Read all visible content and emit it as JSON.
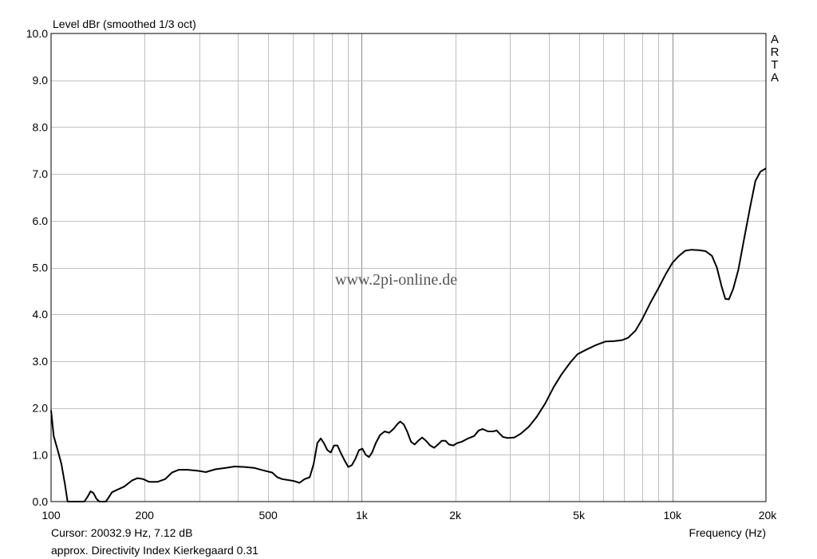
{
  "chart_data": {
    "type": "line",
    "ylabel": "Level dBr (smoothed 1/3 oct)",
    "xlabel": "Frequency (Hz)",
    "x_scale": "log",
    "xlim": [
      100,
      20000
    ],
    "ylim": [
      0,
      10
    ],
    "grid": true,
    "x_ticks": [
      {
        "value": 100,
        "label": "100"
      },
      {
        "value": 200,
        "label": "200"
      },
      {
        "value": 500,
        "label": "500"
      },
      {
        "value": 1000,
        "label": "1k"
      },
      {
        "value": 2000,
        "label": "2k"
      },
      {
        "value": 5000,
        "label": "5k"
      },
      {
        "value": 10000,
        "label": "10k"
      },
      {
        "value": 20000,
        "label": "20k"
      }
    ],
    "y_ticks": [
      {
        "value": 0,
        "label": "0.0"
      },
      {
        "value": 1,
        "label": "1.0"
      },
      {
        "value": 2,
        "label": "2.0"
      },
      {
        "value": 3,
        "label": "3.0"
      },
      {
        "value": 4,
        "label": "4.0"
      },
      {
        "value": 5,
        "label": "5.0"
      },
      {
        "value": 6,
        "label": "6.0"
      },
      {
        "value": 7,
        "label": "7.0"
      },
      {
        "value": 8,
        "label": "8.0"
      },
      {
        "value": 9,
        "label": "9.0"
      },
      {
        "value": 10,
        "label": "10.0"
      }
    ],
    "series": [
      {
        "color": "#000000",
        "points": [
          [
            100,
            1.95
          ],
          [
            102,
            1.4
          ],
          [
            105,
            1.1
          ],
          [
            108,
            0.8
          ],
          [
            111,
            0.35
          ],
          [
            113,
            0.0
          ],
          [
            128,
            0.0
          ],
          [
            131,
            0.1
          ],
          [
            134,
            0.22
          ],
          [
            137,
            0.18
          ],
          [
            140,
            0.06
          ],
          [
            143,
            0.0
          ],
          [
            150,
            0.0
          ],
          [
            153,
            0.08
          ],
          [
            157,
            0.2
          ],
          [
            163,
            0.25
          ],
          [
            172,
            0.32
          ],
          [
            182,
            0.45
          ],
          [
            190,
            0.5
          ],
          [
            198,
            0.48
          ],
          [
            207,
            0.42
          ],
          [
            220,
            0.42
          ],
          [
            233,
            0.48
          ],
          [
            245,
            0.62
          ],
          [
            258,
            0.68
          ],
          [
            275,
            0.68
          ],
          [
            295,
            0.66
          ],
          [
            315,
            0.63
          ],
          [
            338,
            0.69
          ],
          [
            365,
            0.72
          ],
          [
            390,
            0.75
          ],
          [
            420,
            0.74
          ],
          [
            450,
            0.72
          ],
          [
            480,
            0.67
          ],
          [
            515,
            0.62
          ],
          [
            535,
            0.52
          ],
          [
            555,
            0.48
          ],
          [
            580,
            0.46
          ],
          [
            605,
            0.44
          ],
          [
            630,
            0.4
          ],
          [
            655,
            0.48
          ],
          [
            680,
            0.52
          ],
          [
            700,
            0.8
          ],
          [
            720,
            1.25
          ],
          [
            738,
            1.35
          ],
          [
            755,
            1.25
          ],
          [
            775,
            1.1
          ],
          [
            795,
            1.05
          ],
          [
            815,
            1.2
          ],
          [
            835,
            1.2
          ],
          [
            855,
            1.05
          ],
          [
            880,
            0.88
          ],
          [
            905,
            0.74
          ],
          [
            930,
            0.78
          ],
          [
            955,
            0.92
          ],
          [
            980,
            1.1
          ],
          [
            1005,
            1.13
          ],
          [
            1030,
            1.0
          ],
          [
            1055,
            0.95
          ],
          [
            1080,
            1.05
          ],
          [
            1110,
            1.25
          ],
          [
            1145,
            1.42
          ],
          [
            1185,
            1.5
          ],
          [
            1225,
            1.47
          ],
          [
            1265,
            1.55
          ],
          [
            1300,
            1.65
          ],
          [
            1330,
            1.71
          ],
          [
            1365,
            1.65
          ],
          [
            1400,
            1.5
          ],
          [
            1440,
            1.28
          ],
          [
            1480,
            1.22
          ],
          [
            1520,
            1.3
          ],
          [
            1565,
            1.37
          ],
          [
            1610,
            1.3
          ],
          [
            1660,
            1.2
          ],
          [
            1710,
            1.15
          ],
          [
            1760,
            1.22
          ],
          [
            1810,
            1.3
          ],
          [
            1860,
            1.3
          ],
          [
            1910,
            1.22
          ],
          [
            1970,
            1.2
          ],
          [
            2030,
            1.25
          ],
          [
            2100,
            1.28
          ],
          [
            2200,
            1.35
          ],
          [
            2300,
            1.4
          ],
          [
            2380,
            1.52
          ],
          [
            2450,
            1.55
          ],
          [
            2550,
            1.5
          ],
          [
            2650,
            1.5
          ],
          [
            2720,
            1.52
          ],
          [
            2780,
            1.45
          ],
          [
            2850,
            1.38
          ],
          [
            2950,
            1.36
          ],
          [
            3100,
            1.37
          ],
          [
            3250,
            1.45
          ],
          [
            3450,
            1.6
          ],
          [
            3650,
            1.8
          ],
          [
            3900,
            2.1
          ],
          [
            4150,
            2.45
          ],
          [
            4400,
            2.72
          ],
          [
            4700,
            2.98
          ],
          [
            4950,
            3.15
          ],
          [
            5300,
            3.25
          ],
          [
            5700,
            3.35
          ],
          [
            6100,
            3.42
          ],
          [
            6500,
            3.43
          ],
          [
            6900,
            3.45
          ],
          [
            7200,
            3.5
          ],
          [
            7600,
            3.65
          ],
          [
            8000,
            3.9
          ],
          [
            8500,
            4.25
          ],
          [
            9000,
            4.55
          ],
          [
            9500,
            4.85
          ],
          [
            10000,
            5.1
          ],
          [
            10500,
            5.25
          ],
          [
            11000,
            5.36
          ],
          [
            11500,
            5.38
          ],
          [
            12200,
            5.37
          ],
          [
            12800,
            5.35
          ],
          [
            13400,
            5.25
          ],
          [
            13900,
            5.0
          ],
          [
            14400,
            4.6
          ],
          [
            14800,
            4.33
          ],
          [
            15200,
            4.32
          ],
          [
            15700,
            4.55
          ],
          [
            16300,
            4.95
          ],
          [
            17000,
            5.6
          ],
          [
            17800,
            6.3
          ],
          [
            18500,
            6.85
          ],
          [
            19200,
            7.05
          ],
          [
            20000,
            7.12
          ]
        ]
      }
    ]
  },
  "texts": {
    "ylabel": "Level dBr (smoothed 1/3 oct)",
    "xlabel": "Frequency (Hz)",
    "cursor": "Cursor: 20032.9 Hz, 7.12 dB",
    "directivity": "approx. Directivity Index Kierkegaard 0.31",
    "watermark": "www.2pi-online.de",
    "brand_letters": [
      "A",
      "R",
      "T",
      "A"
    ]
  },
  "colors": {
    "grid": "#c0c0c0",
    "frame": "#000000",
    "line": "#000000",
    "background": "#ffffff"
  }
}
